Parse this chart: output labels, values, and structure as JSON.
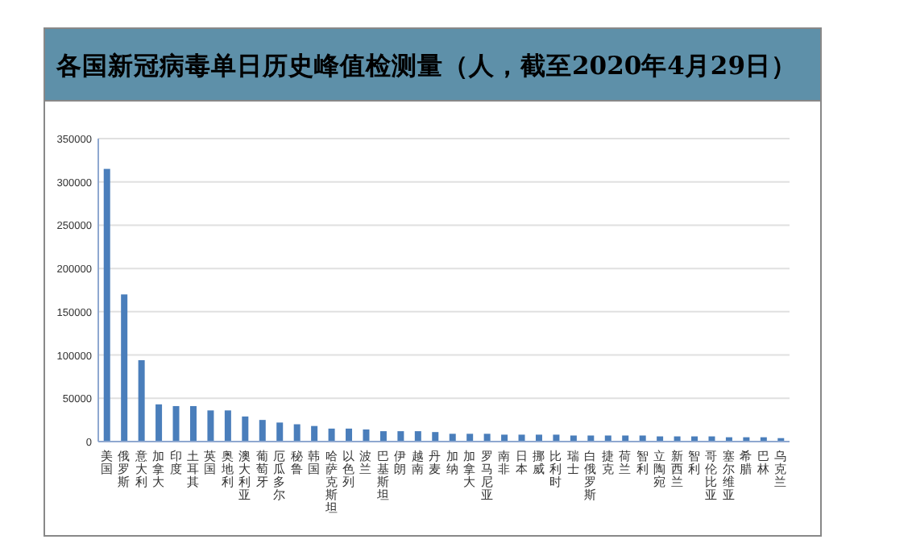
{
  "chart_data": {
    "type": "bar",
    "title": "各国新冠病毒单日历史峰值检测量（人，截至2020年4月29日）",
    "categories": [
      "美国",
      "俄罗斯",
      "意大利",
      "加拿大",
      "印度",
      "土耳其",
      "英国",
      "奥地利",
      "澳大利亚",
      "葡萄牙",
      "厄瓜多尔",
      "秘鲁",
      "韩国",
      "哈萨克斯坦",
      "以色列",
      "波兰",
      "巴基斯坦",
      "伊朗",
      "越南",
      "丹麦",
      "加纳",
      "加拿大",
      "罗马尼亚",
      "南非",
      "日本",
      "挪威",
      "比利时",
      "瑞士",
      "白俄罗斯",
      "捷克",
      "荷兰",
      "智利",
      "立陶宛",
      "新西兰",
      "智利",
      "哥伦比亚",
      "塞尔维亚",
      "希腊",
      "巴林",
      "乌克兰"
    ],
    "values": [
      315000,
      170000,
      94000,
      43000,
      41000,
      41000,
      36000,
      36000,
      29000,
      25000,
      22000,
      20000,
      18000,
      15000,
      15000,
      14000,
      12000,
      12000,
      12000,
      11000,
      9000,
      9000,
      9000,
      8000,
      8000,
      8000,
      8000,
      7000,
      7000,
      7000,
      7000,
      7000,
      6000,
      6000,
      6000,
      6000,
      5000,
      5000,
      5000,
      4000
    ],
    "color": "#4a7ebb",
    "ylim": [
      0,
      350000
    ],
    "yticks": [
      0,
      50000,
      100000,
      150000,
      200000,
      250000,
      300000,
      350000
    ],
    "grid": "y"
  }
}
